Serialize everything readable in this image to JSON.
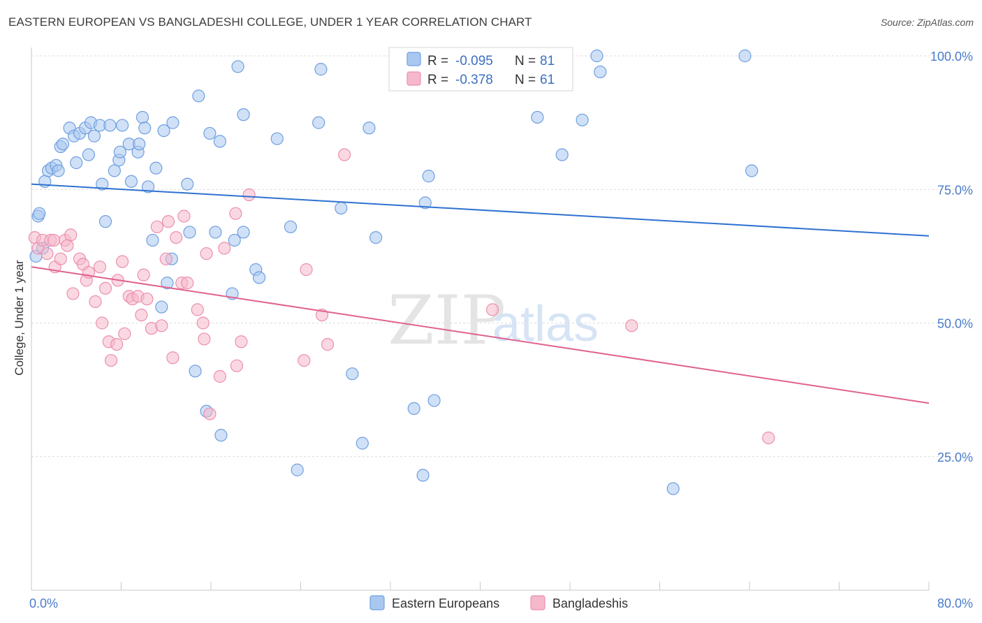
{
  "title": "EASTERN EUROPEAN VS BANGLADESHI COLLEGE, UNDER 1 YEAR CORRELATION CHART",
  "source": "Source: ZipAtlas.com",
  "watermark": {
    "zip": "ZIP",
    "atlas": "atlas"
  },
  "colors": {
    "blue_fill": "#a9c8f0",
    "blue_stroke": "#6f9fe0",
    "blue_line": "#2f72d0",
    "pink_fill": "#f6b8cb",
    "pink_stroke": "#ec8fae",
    "pink_line": "#e0628f",
    "tick_text": "#4a7cc9",
    "grid": "#dcdcdc"
  },
  "legend": {
    "rows": [
      {
        "r_label": "R = ",
        "r_value": "-0.095",
        "n_label": "N = ",
        "n_value": "81"
      },
      {
        "r_label": "R = ",
        "r_value": "-0.378",
        "n_label": "N = ",
        "n_value": "61"
      }
    ]
  },
  "bottom_legend": [
    "Eastern Europeans",
    "Bangladeshis"
  ],
  "chart_data": {
    "type": "scatter",
    "title": "EASTERN EUROPEAN VS BANGLADESHI COLLEGE, UNDER 1 YEAR CORRELATION CHART",
    "xlabel": "",
    "ylabel": "College, Under 1 year",
    "xlim": [
      0,
      80
    ],
    "ylim": [
      0,
      100
    ],
    "x_tick_labels": [
      "0.0%",
      "80.0%"
    ],
    "y_ticks": [
      25,
      50,
      75,
      100
    ],
    "y_tick_labels": [
      "25.0%",
      "50.0%",
      "75.0%",
      "100.0%"
    ],
    "grid": true,
    "legend_position": "top-center",
    "series": [
      {
        "name": "Eastern Europeans",
        "r": -0.095,
        "n": 81,
        "trend": {
          "x": [
            0,
            80
          ],
          "y": [
            76.0,
            66.3
          ]
        },
        "points": [
          [
            0.4,
            62.5
          ],
          [
            0.6,
            70.0
          ],
          [
            1.2,
            76.5
          ],
          [
            1.5,
            78.5
          ],
          [
            1.8,
            79.0
          ],
          [
            2.2,
            79.5
          ],
          [
            2.4,
            78.5
          ],
          [
            2.6,
            83.0
          ],
          [
            2.8,
            83.5
          ],
          [
            3.4,
            86.5
          ],
          [
            3.8,
            85.0
          ],
          [
            4.0,
            80.0
          ],
          [
            4.3,
            85.5
          ],
          [
            4.8,
            86.5
          ],
          [
            5.1,
            81.5
          ],
          [
            5.3,
            87.5
          ],
          [
            5.6,
            85.0
          ],
          [
            6.1,
            87.0
          ],
          [
            6.3,
            76.0
          ],
          [
            6.6,
            69.0
          ],
          [
            7.0,
            87.0
          ],
          [
            7.4,
            78.5
          ],
          [
            7.8,
            80.5
          ],
          [
            7.9,
            82.0
          ],
          [
            8.1,
            87.0
          ],
          [
            8.7,
            83.5
          ],
          [
            8.9,
            76.5
          ],
          [
            9.5,
            82.0
          ],
          [
            9.6,
            83.5
          ],
          [
            9.9,
            88.5
          ],
          [
            10.1,
            86.5
          ],
          [
            10.4,
            75.5
          ],
          [
            10.8,
            65.5
          ],
          [
            11.1,
            79.0
          ],
          [
            11.6,
            53.0
          ],
          [
            11.8,
            86.0
          ],
          [
            12.1,
            57.5
          ],
          [
            12.5,
            62.0
          ],
          [
            12.6,
            87.5
          ],
          [
            13.9,
            76.0
          ],
          [
            14.1,
            67.0
          ],
          [
            14.6,
            41.0
          ],
          [
            14.9,
            92.5
          ],
          [
            15.6,
            33.5
          ],
          [
            15.9,
            85.5
          ],
          [
            16.4,
            67.0
          ],
          [
            16.9,
            29.0
          ],
          [
            16.8,
            84.0
          ],
          [
            17.9,
            55.5
          ],
          [
            18.1,
            65.5
          ],
          [
            18.4,
            98.0
          ],
          [
            18.9,
            89.0
          ],
          [
            18.9,
            67.0
          ],
          [
            20.0,
            60.0
          ],
          [
            20.3,
            58.5
          ],
          [
            21.9,
            84.5
          ],
          [
            23.1,
            68.0
          ],
          [
            23.7,
            22.5
          ],
          [
            25.6,
            87.5
          ],
          [
            25.8,
            97.5
          ],
          [
            27.6,
            71.5
          ],
          [
            28.6,
            40.5
          ],
          [
            29.5,
            27.5
          ],
          [
            30.1,
            86.5
          ],
          [
            30.7,
            66.0
          ],
          [
            34.1,
            34.0
          ],
          [
            34.9,
            21.5
          ],
          [
            35.1,
            72.5
          ],
          [
            35.4,
            77.5
          ],
          [
            35.9,
            35.5
          ],
          [
            39.5,
            100.0
          ],
          [
            45.1,
            88.5
          ],
          [
            47.3,
            81.5
          ],
          [
            49.1,
            88.0
          ],
          [
            50.4,
            100.0
          ],
          [
            50.7,
            97.0
          ],
          [
            57.2,
            19.0
          ],
          [
            63.6,
            100.0
          ],
          [
            64.2,
            78.5
          ],
          [
            0.7,
            70.5
          ],
          [
            1.0,
            64.0
          ]
        ]
      },
      {
        "name": "Bangladeshis",
        "r": -0.378,
        "n": 61,
        "trend": {
          "x": [
            0,
            80
          ],
          "y": [
            60.5,
            35.0
          ]
        },
        "points": [
          [
            0.3,
            66.0
          ],
          [
            0.6,
            64.0
          ],
          [
            1.0,
            65.5
          ],
          [
            1.4,
            63.0
          ],
          [
            1.7,
            65.5
          ],
          [
            2.0,
            65.5
          ],
          [
            2.1,
            60.5
          ],
          [
            2.6,
            62.0
          ],
          [
            3.0,
            65.5
          ],
          [
            3.2,
            64.5
          ],
          [
            3.5,
            66.5
          ],
          [
            3.7,
            55.5
          ],
          [
            4.3,
            62.0
          ],
          [
            4.6,
            61.0
          ],
          [
            4.9,
            58.0
          ],
          [
            5.1,
            59.5
          ],
          [
            5.7,
            54.0
          ],
          [
            6.1,
            60.5
          ],
          [
            6.3,
            50.0
          ],
          [
            6.6,
            56.5
          ],
          [
            6.9,
            46.5
          ],
          [
            7.1,
            43.0
          ],
          [
            7.6,
            46.0
          ],
          [
            7.7,
            58.0
          ],
          [
            8.1,
            61.5
          ],
          [
            8.3,
            48.0
          ],
          [
            8.7,
            55.0
          ],
          [
            9.0,
            54.5
          ],
          [
            9.5,
            55.0
          ],
          [
            9.8,
            51.5
          ],
          [
            10.0,
            59.0
          ],
          [
            10.3,
            54.5
          ],
          [
            10.7,
            49.0
          ],
          [
            11.2,
            68.0
          ],
          [
            11.6,
            49.5
          ],
          [
            12.0,
            62.0
          ],
          [
            12.2,
            69.0
          ],
          [
            12.6,
            43.5
          ],
          [
            12.9,
            66.0
          ],
          [
            13.4,
            57.5
          ],
          [
            13.6,
            70.0
          ],
          [
            13.9,
            57.5
          ],
          [
            14.8,
            52.5
          ],
          [
            15.3,
            50.0
          ],
          [
            15.4,
            47.0
          ],
          [
            15.6,
            63.0
          ],
          [
            15.9,
            33.0
          ],
          [
            16.8,
            40.0
          ],
          [
            17.2,
            64.0
          ],
          [
            18.2,
            70.5
          ],
          [
            18.3,
            42.0
          ],
          [
            18.7,
            46.5
          ],
          [
            19.4,
            74.0
          ],
          [
            24.3,
            43.0
          ],
          [
            24.5,
            60.0
          ],
          [
            25.9,
            51.5
          ],
          [
            26.4,
            46.0
          ],
          [
            27.9,
            81.5
          ],
          [
            41.1,
            52.5
          ],
          [
            53.5,
            49.5
          ],
          [
            65.7,
            28.5
          ]
        ]
      }
    ]
  }
}
